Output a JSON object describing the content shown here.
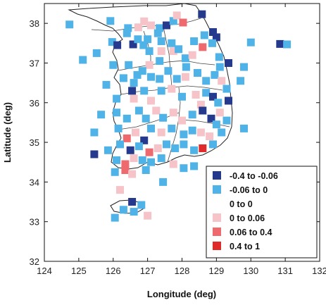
{
  "axes": {
    "xlabel": "Longitude (deg)",
    "ylabel": "Latitude (deg)",
    "xlim": [
      124,
      132
    ],
    "ylim": [
      32,
      38.5
    ],
    "xticks": [
      "124",
      "125",
      "126",
      "127",
      "128",
      "129",
      "130",
      "131",
      "132"
    ],
    "yticks": [
      "32",
      "33",
      "34",
      "35",
      "36",
      "37",
      "38"
    ]
  },
  "legend": {
    "placement": "bottom-right",
    "items": [
      {
        "label": "-0.4  to  -0.06",
        "color": "#253a8c"
      },
      {
        "label": "-0.06  to  0",
        "color": "#4fb3e8"
      },
      {
        "label": "0  to  0",
        "color": "#ffffff"
      },
      {
        "label": "0  to  0.06",
        "color": "#f6c4c8"
      },
      {
        "label": "0.06  to  0.4",
        "color": "#ee6a6e"
      },
      {
        "label": "0.4  to  1",
        "color": "#e02b2b"
      }
    ]
  },
  "chart_data": {
    "type": "scatter",
    "xlabel": "Longitude (deg)",
    "ylabel": "Latitude (deg)",
    "xlim": [
      124,
      132
    ],
    "ylim": [
      32,
      38.5
    ],
    "grid": false,
    "legend_placement": "bottom-right",
    "points": [
      [
        124.73,
        37.97,
        1
      ],
      [
        125.12,
        37.08,
        1
      ],
      [
        125.52,
        37.25,
        1
      ],
      [
        125.92,
        38.06,
        1
      ],
      [
        125.97,
        37.53,
        1
      ],
      [
        126.12,
        37.45,
        0
      ],
      [
        126.4,
        37.75,
        1
      ],
      [
        126.58,
        37.47,
        0
      ],
      [
        126.72,
        37.6,
        1
      ],
      [
        126.43,
        37.88,
        1
      ],
      [
        126.73,
        37.9,
        3
      ],
      [
        126.9,
        38.05,
        3
      ],
      [
        127.1,
        37.95,
        3
      ],
      [
        127.35,
        37.88,
        1
      ],
      [
        127.55,
        37.95,
        0
      ],
      [
        127.75,
        38.06,
        1
      ],
      [
        127.85,
        38.2,
        3
      ],
      [
        128.03,
        38.02,
        4
      ],
      [
        128.58,
        38.23,
        0
      ],
      [
        127.3,
        37.75,
        1
      ],
      [
        127.0,
        37.6,
        1
      ],
      [
        126.88,
        37.45,
        1
      ],
      [
        127.05,
        37.3,
        1
      ],
      [
        127.4,
        37.55,
        1
      ],
      [
        127.4,
        37.3,
        3
      ],
      [
        127.7,
        37.5,
        1
      ],
      [
        127.75,
        37.3,
        3
      ],
      [
        127.35,
        37.05,
        1
      ],
      [
        127.05,
        36.95,
        3
      ],
      [
        128.1,
        37.12,
        1
      ],
      [
        127.9,
        37.35,
        1
      ],
      [
        128.3,
        37.2,
        3
      ],
      [
        128.35,
        37.55,
        1
      ],
      [
        128.6,
        37.4,
        4
      ],
      [
        128.65,
        37.7,
        1
      ],
      [
        128.9,
        37.78,
        0
      ],
      [
        129.0,
        37.65,
        0
      ],
      [
        128.88,
        37.5,
        1
      ],
      [
        129.08,
        37.15,
        1
      ],
      [
        129.1,
        36.9,
        1
      ],
      [
        129.35,
        37.0,
        0
      ],
      [
        129.8,
        36.9,
        1
      ],
      [
        130.0,
        37.52,
        1
      ],
      [
        130.85,
        37.48,
        0
      ],
      [
        131.05,
        37.47,
        1
      ],
      [
        126.0,
        36.95,
        1
      ],
      [
        126.45,
        36.95,
        1
      ],
      [
        126.7,
        36.7,
        1
      ],
      [
        126.3,
        36.62,
        1
      ],
      [
        126.6,
        36.5,
        1
      ],
      [
        126.85,
        36.8,
        1
      ],
      [
        127.1,
        36.65,
        1
      ],
      [
        127.35,
        36.6,
        1
      ],
      [
        127.6,
        36.8,
        1
      ],
      [
        127.85,
        36.6,
        1
      ],
      [
        128.12,
        36.9,
        1
      ],
      [
        128.1,
        36.65,
        3
      ],
      [
        128.45,
        36.75,
        1
      ],
      [
        128.7,
        36.55,
        1
      ],
      [
        128.95,
        36.7,
        1
      ],
      [
        129.15,
        36.55,
        3
      ],
      [
        129.3,
        36.35,
        1
      ],
      [
        129.7,
        36.55,
        1
      ],
      [
        125.8,
        36.45,
        1
      ],
      [
        126.1,
        36.1,
        1
      ],
      [
        126.55,
        36.3,
        0
      ],
      [
        126.6,
        36.1,
        3
      ],
      [
        126.9,
        36.3,
        1
      ],
      [
        127.1,
        36.05,
        3
      ],
      [
        127.4,
        36.3,
        1
      ],
      [
        127.7,
        36.35,
        3
      ],
      [
        128.0,
        36.15,
        1
      ],
      [
        128.4,
        36.2,
        3
      ],
      [
        128.55,
        35.95,
        3
      ],
      [
        128.7,
        36.25,
        1
      ],
      [
        128.9,
        36.15,
        0
      ],
      [
        129.05,
        36.0,
        1
      ],
      [
        129.35,
        36.05,
        0
      ],
      [
        125.65,
        35.7,
        1
      ],
      [
        126.1,
        35.75,
        1
      ],
      [
        126.4,
        35.6,
        1
      ],
      [
        126.75,
        35.8,
        1
      ],
      [
        126.95,
        35.6,
        1
      ],
      [
        127.25,
        35.8,
        3
      ],
      [
        127.45,
        35.62,
        1
      ],
      [
        127.75,
        35.75,
        3
      ],
      [
        128.0,
        35.55,
        3
      ],
      [
        128.3,
        35.7,
        1
      ],
      [
        128.6,
        35.8,
        0
      ],
      [
        128.85,
        35.6,
        0
      ],
      [
        129.1,
        35.75,
        3
      ],
      [
        129.3,
        35.55,
        1
      ],
      [
        129.8,
        35.35,
        1
      ],
      [
        125.45,
        35.25,
        1
      ],
      [
        126.15,
        35.35,
        1
      ],
      [
        126.4,
        35.1,
        4
      ],
      [
        126.65,
        35.25,
        3
      ],
      [
        126.9,
        35.05,
        0
      ],
      [
        127.1,
        35.35,
        1
      ],
      [
        127.4,
        35.25,
        3
      ],
      [
        127.7,
        35.35,
        1
      ],
      [
        128.05,
        35.2,
        1
      ],
      [
        128.3,
        35.3,
        1
      ],
      [
        128.55,
        35.25,
        3
      ],
      [
        128.8,
        35.15,
        3
      ],
      [
        129.0,
        35.45,
        1
      ],
      [
        129.15,
        35.25,
        1
      ],
      [
        125.45,
        34.7,
        0
      ],
      [
        125.85,
        34.8,
        1
      ],
      [
        126.2,
        34.95,
        1
      ],
      [
        126.5,
        34.8,
        0
      ],
      [
        126.75,
        34.9,
        1
      ],
      [
        127.05,
        34.75,
        4
      ],
      [
        127.3,
        34.85,
        3
      ],
      [
        127.55,
        34.95,
        1
      ],
      [
        127.8,
        34.85,
        1
      ],
      [
        128.05,
        34.95,
        1
      ],
      [
        128.35,
        34.8,
        1
      ],
      [
        128.6,
        34.85,
        5
      ],
      [
        128.9,
        34.95,
        1
      ],
      [
        126.1,
        34.55,
        1
      ],
      [
        126.35,
        34.45,
        4
      ],
      [
        126.6,
        34.6,
        3
      ],
      [
        126.85,
        34.55,
        1
      ],
      [
        127.1,
        34.5,
        1
      ],
      [
        127.4,
        34.6,
        1
      ],
      [
        127.75,
        34.45,
        3
      ],
      [
        128.05,
        34.35,
        1
      ],
      [
        128.35,
        34.4,
        1
      ],
      [
        126.05,
        34.25,
        1
      ],
      [
        126.35,
        34.3,
        4
      ],
      [
        126.55,
        34.2,
        3
      ],
      [
        126.95,
        34.3,
        1
      ],
      [
        126.2,
        33.8,
        3
      ],
      [
        126.55,
        33.5,
        0
      ],
      [
        126.3,
        33.3,
        1
      ],
      [
        126.05,
        33.1,
        1
      ],
      [
        126.6,
        33.25,
        1
      ],
      [
        126.82,
        33.42,
        1
      ],
      [
        127.0,
        33.15,
        3
      ],
      [
        127.45,
        34.0,
        1
      ]
    ]
  }
}
